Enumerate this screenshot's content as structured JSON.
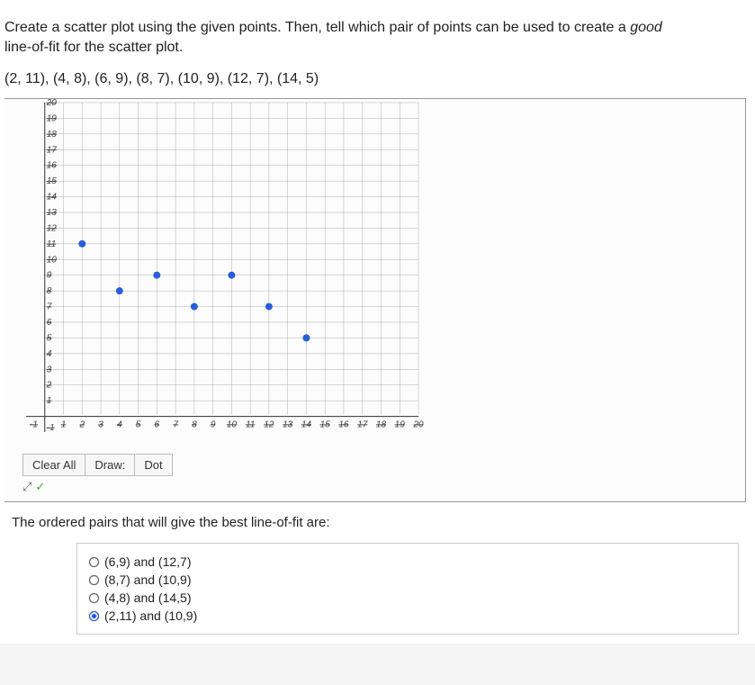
{
  "question": {
    "line1": "Create a scatter plot using the given points. Then, tell which pair of points can be used to create a ",
    "italic": "good",
    "line2": " line-of-fit for the scatter plot."
  },
  "points_text": "(2, 11), (4, 8), (6, 9), (8, 7), (10, 9), (12, 7), (14, 5)",
  "chart": {
    "type": "scatter",
    "xlim": [
      -1,
      20
    ],
    "ylim": [
      -1,
      20
    ],
    "xtick_step": 1,
    "ytick_step": 1,
    "grid_color": "#b0b0b0",
    "axis_color": "#333333",
    "background_color": "#fcfcfc",
    "dot_color": "#2a5dd8",
    "dot_radius": 4,
    "tick_font_size": 10,
    "data": [
      {
        "x": 2,
        "y": 11
      },
      {
        "x": 4,
        "y": 8
      },
      {
        "x": 6,
        "y": 9
      },
      {
        "x": 8,
        "y": 7
      },
      {
        "x": 10,
        "y": 9
      },
      {
        "x": 12,
        "y": 7
      },
      {
        "x": 14,
        "y": 5
      }
    ],
    "x_labels": [
      "1",
      "2",
      "3",
      "4",
      "5",
      "6",
      "7",
      "8",
      "9",
      "10",
      "11",
      "12",
      "13",
      "14",
      "15",
      "16",
      "17",
      "18",
      "19",
      "20"
    ],
    "y_labels": [
      "1",
      "2",
      "3",
      "4",
      "5",
      "6",
      "7",
      "8",
      "9",
      "10",
      "11",
      "12",
      "13",
      "14",
      "15",
      "16",
      "17",
      "18",
      "19",
      "20"
    ]
  },
  "toolbar": {
    "clear_label": "Clear All",
    "draw_label": "Draw:",
    "dot_label": "Dot",
    "expand_symbol": "⤢",
    "check_symbol": "✓"
  },
  "follow_text": "The ordered pairs that will give the best line-of-fit are:",
  "options": [
    {
      "label": "(6,9) and (12,7)",
      "selected": false
    },
    {
      "label": "(8,7) and (10,9)",
      "selected": false
    },
    {
      "label": "(4,8) and (14,5)",
      "selected": false
    },
    {
      "label": "(2,11) and (10,9)",
      "selected": true
    }
  ]
}
